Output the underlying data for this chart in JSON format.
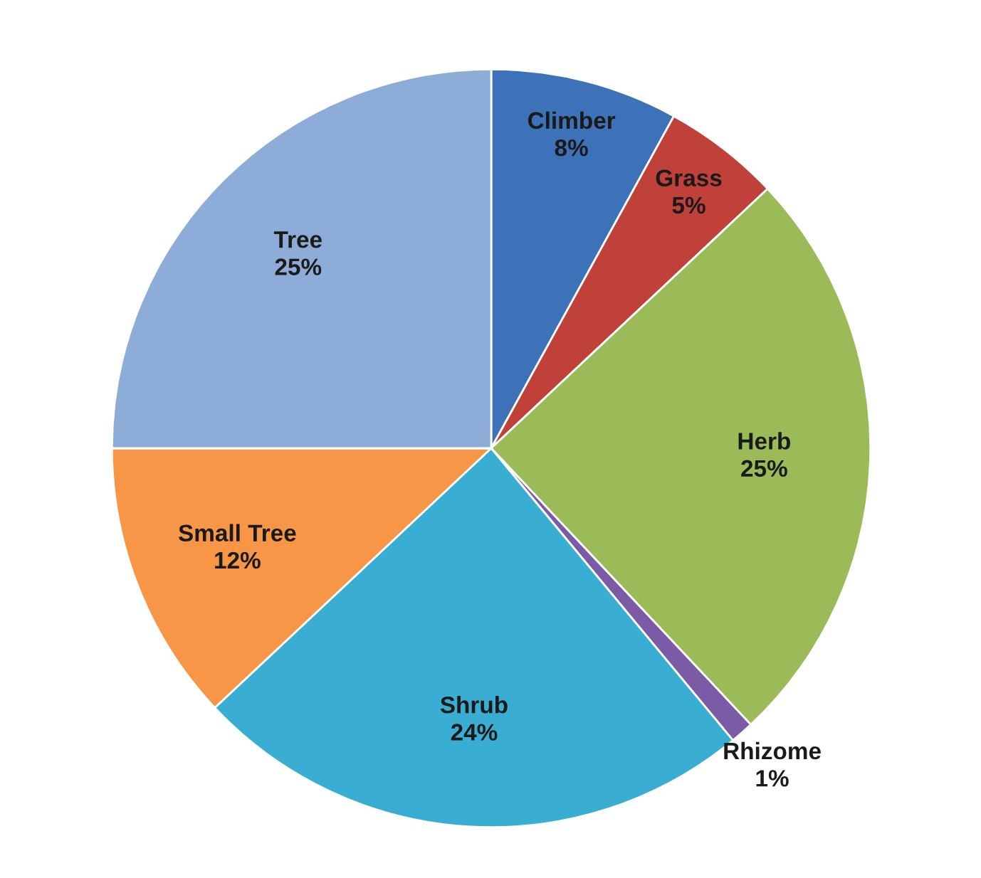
{
  "chart_data": {
    "type": "pie",
    "categories": [
      "Climber",
      "Grass",
      "Herb",
      "Rhizome",
      "Shrub",
      "Small Tree",
      "Tree"
    ],
    "values": [
      8,
      5,
      25,
      1,
      24,
      12,
      25
    ],
    "value_labels": [
      "8%",
      "5%",
      "25%",
      "1%",
      "24%",
      "12%",
      "25%"
    ],
    "colors": [
      "#3d72b8",
      "#c0403a",
      "#9bbb59",
      "#7b5aa6",
      "#3aaed2",
      "#f79646",
      "#8eacd8"
    ],
    "legend": false
  }
}
